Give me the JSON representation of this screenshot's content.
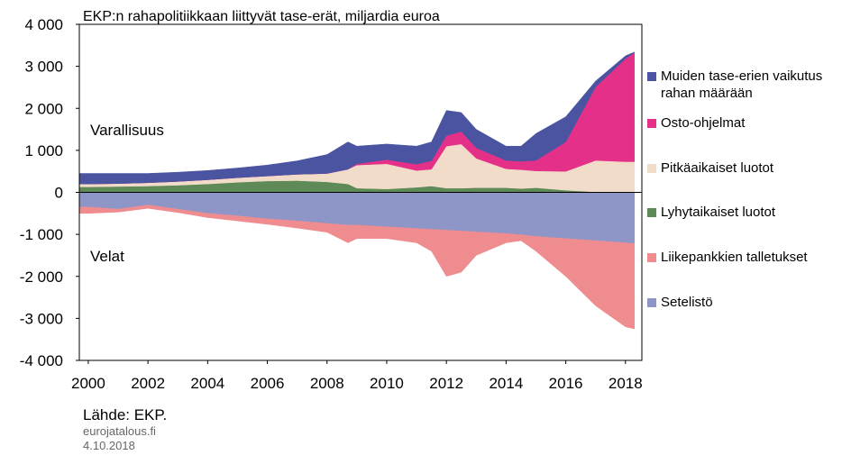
{
  "chart_data": {
    "type": "stacked-area",
    "title": "EKP:n rahapolitiikkaan liittyvät tase-erät, miljardia euroa",
    "annotations": [
      "Varallisuus",
      "Velat"
    ],
    "source": "Lähde: EKP.",
    "site": "eurojatalous.fi",
    "date": "4.10.2018",
    "x": [
      1999.7,
      2000,
      2001,
      2002,
      2003,
      2004,
      2005,
      2006,
      2007,
      2008,
      2008.7,
      2009,
      2010,
      2011,
      2011.5,
      2012,
      2012.5,
      2013,
      2014,
      2014.5,
      2015,
      2016,
      2017,
      2018,
      2018.3
    ],
    "series": [
      {
        "name": "Muiden tase-erien vaikutus rahan määrään",
        "color": "#4a54a0",
        "values": [
          250,
          250,
          240,
          220,
          220,
          220,
          230,
          260,
          320,
          450,
          650,
          420,
          370,
          430,
          450,
          600,
          450,
          440,
          340,
          360,
          640,
          600,
          140,
          70,
          10
        ]
      },
      {
        "name": "Osto-ohjelmat",
        "color": "#e5308a",
        "values": [
          0,
          0,
          0,
          0,
          0,
          0,
          0,
          0,
          0,
          0,
          0,
          30,
          100,
          150,
          200,
          250,
          300,
          250,
          200,
          200,
          250,
          700,
          1750,
          2450,
          2600
        ]
      },
      {
        "name": "Pitkäaikaiset luotot",
        "color": "#f0dcc8",
        "values": [
          70,
          70,
          70,
          80,
          90,
          100,
          110,
          120,
          150,
          200,
          350,
          550,
          600,
          400,
          400,
          1000,
          1050,
          700,
          450,
          450,
          400,
          450,
          750,
          720,
          720
        ]
      },
      {
        "name": "Lyhytaikaiset luotot",
        "color": "#5e8a58",
        "values": [
          130,
          130,
          140,
          150,
          170,
          200,
          240,
          270,
          280,
          250,
          200,
          100,
          80,
          120,
          150,
          100,
          100,
          110,
          110,
          90,
          110,
          50,
          10,
          10,
          10
        ]
      },
      {
        "name": "Liikepankkien talletukset",
        "color": "#ef8c8f",
        "values": [
          -150,
          -150,
          -70,
          -80,
          -80,
          -100,
          -120,
          -130,
          -170,
          -210,
          -420,
          -320,
          -280,
          -340,
          -520,
          -1100,
          -980,
          -560,
          -220,
          -140,
          -350,
          -900,
          -1550,
          -2000,
          -2030
        ]
      },
      {
        "name": "Setelistö",
        "color": "#8e96c8",
        "values": [
          -350,
          -350,
          -400,
          -300,
          -400,
          -500,
          -560,
          -630,
          -680,
          -740,
          -780,
          -780,
          -820,
          -860,
          -880,
          -900,
          -920,
          -940,
          -980,
          -1010,
          -1050,
          -1100,
          -1150,
          -1200,
          -1220
        ]
      }
    ],
    "xlim": [
      1999.7,
      2018.55
    ],
    "xticks": [
      2000,
      2002,
      2004,
      2006,
      2008,
      2010,
      2012,
      2014,
      2016,
      2018
    ],
    "ylim": [
      -4000,
      4000
    ],
    "yticks": [
      {
        "value": -4000,
        "label": "-4 000"
      },
      {
        "value": -3000,
        "label": "-3 000"
      },
      {
        "value": -2000,
        "label": "-2 000"
      },
      {
        "value": -1000,
        "label": "-1 000"
      },
      0,
      {
        "value": 1000,
        "label": "1 000"
      },
      {
        "value": 2000,
        "label": "2 000"
      },
      {
        "value": 3000,
        "label": "3 000"
      },
      {
        "value": 4000,
        "label": "4 000"
      }
    ]
  }
}
